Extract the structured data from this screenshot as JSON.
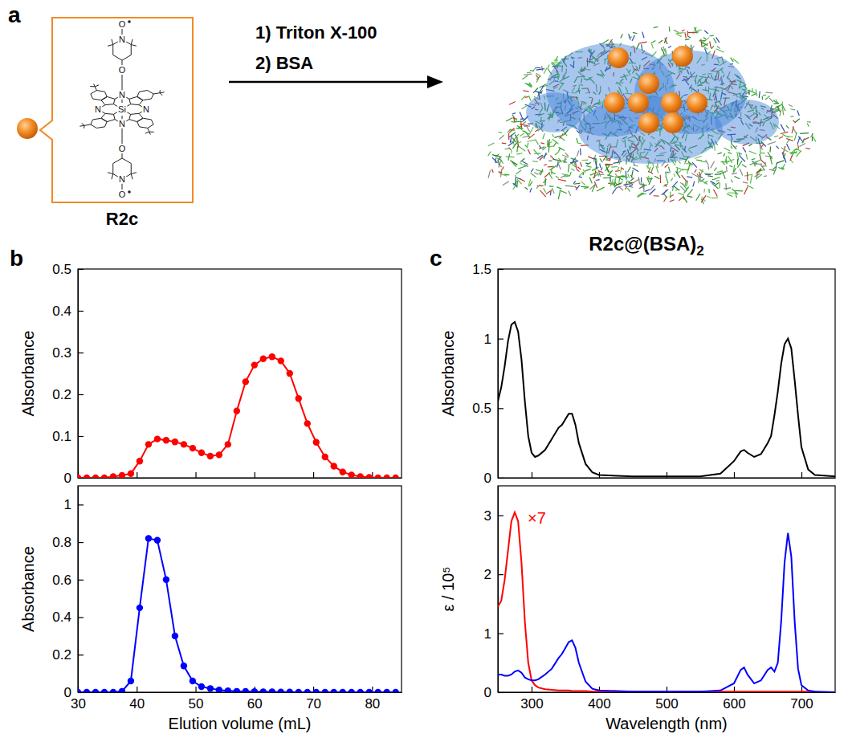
{
  "scheme": {
    "panel_label": "a",
    "compound": "R2c",
    "atom_labels": [
      "Si",
      "N",
      "O"
    ],
    "steps": [
      "1) Triton X-100",
      "2) BSA"
    ],
    "product": "R2c@(BSA)2"
  },
  "chart_data": [
    {
      "type": "line",
      "panel_label": "b",
      "x": [
        30,
        31.5,
        33,
        34.5,
        36,
        37.5,
        39,
        40.5,
        42,
        43.5,
        45,
        46.5,
        48,
        49.5,
        51,
        52.5,
        54,
        55.5,
        57,
        58.5,
        60,
        61.5,
        63,
        64.5,
        66,
        67.5,
        69,
        70.5,
        72,
        73.5,
        75,
        76.5,
        78,
        79.5,
        81,
        82.5,
        84
      ],
      "series": [
        {
          "color": "#ff0000",
          "marker": "circle",
          "values": [
            0,
            0,
            0,
            0,
            0.003,
            0.006,
            0.01,
            0.04,
            0.08,
            0.093,
            0.09,
            0.086,
            0.08,
            0.071,
            0.06,
            0.052,
            0.055,
            0.08,
            0.16,
            0.23,
            0.27,
            0.285,
            0.29,
            0.28,
            0.25,
            0.19,
            0.13,
            0.085,
            0.05,
            0.028,
            0.014,
            0.007,
            0.003,
            0.001,
            0,
            0,
            0
          ]
        }
      ],
      "xlim": [
        30,
        85
      ],
      "xticks": [
        30,
        40,
        50,
        60,
        70,
        80
      ],
      "ylim": [
        0,
        0.5
      ],
      "yticks": [
        0,
        0.1,
        0.2,
        0.3,
        0.4,
        0.5
      ],
      "y_label": "Absorbance",
      "tick_labels": "y"
    },
    {
      "type": "line",
      "x": [
        30,
        31.5,
        33,
        34.5,
        36,
        37.5,
        39,
        40.5,
        42,
        43.5,
        45,
        46.5,
        48,
        49.5,
        51,
        52.5,
        54,
        55.5,
        57,
        58.5,
        60,
        61.5,
        63,
        64.5,
        66,
        67.5,
        69,
        70.5,
        72,
        73.5,
        75,
        76.5,
        78,
        79.5,
        81,
        82.5,
        84
      ],
      "series": [
        {
          "color": "#0000ff",
          "marker": "circle",
          "values": [
            0,
            0,
            0,
            0,
            0,
            0.005,
            0.06,
            0.45,
            0.82,
            0.81,
            0.6,
            0.3,
            0.14,
            0.06,
            0.03,
            0.02,
            0.012,
            0.008,
            0.005,
            0.004,
            0.003,
            0.002,
            0.002,
            0.001,
            0.001,
            0,
            0,
            0,
            0,
            0,
            0,
            0,
            0,
            0,
            0,
            0,
            0
          ]
        }
      ],
      "xlim": [
        30,
        85
      ],
      "xticks": [
        30,
        40,
        50,
        60,
        70,
        80
      ],
      "ylim": [
        0,
        1.1
      ],
      "yticks": [
        0,
        0.2,
        0.4,
        0.6,
        0.8,
        1
      ],
      "x_label": "Elution volume (mL)",
      "y_label": "Absorbance"
    },
    {
      "type": "line",
      "panel_label": "c",
      "x": [
        250,
        255,
        260,
        265,
        270,
        275,
        280,
        285,
        290,
        295,
        300,
        305,
        310,
        320,
        330,
        340,
        345,
        350,
        355,
        360,
        365,
        370,
        380,
        390,
        400,
        450,
        500,
        550,
        580,
        600,
        610,
        615,
        620,
        630,
        640,
        650,
        655,
        660,
        665,
        670,
        675,
        680,
        685,
        690,
        695,
        700,
        710,
        720,
        750
      ],
      "series": [
        {
          "color": "#000000",
          "values": [
            0.55,
            0.65,
            0.8,
            0.98,
            1.1,
            1.12,
            1.05,
            0.85,
            0.55,
            0.3,
            0.18,
            0.15,
            0.16,
            0.2,
            0.28,
            0.36,
            0.38,
            0.42,
            0.46,
            0.46,
            0.38,
            0.25,
            0.1,
            0.04,
            0.02,
            0.01,
            0.01,
            0.01,
            0.03,
            0.12,
            0.19,
            0.2,
            0.18,
            0.15,
            0.17,
            0.25,
            0.3,
            0.45,
            0.62,
            0.82,
            0.96,
            1.0,
            0.93,
            0.7,
            0.45,
            0.22,
            0.06,
            0.02,
            0.01
          ]
        }
      ],
      "xlim": [
        250,
        750
      ],
      "xticks": [
        300,
        400,
        500,
        600,
        700
      ],
      "ylim": [
        0,
        1.5
      ],
      "yticks": [
        0,
        0.5,
        1,
        1.5
      ],
      "y_label": "Absorbance",
      "tick_labels": "y"
    },
    {
      "type": "line",
      "x": [
        250,
        255,
        260,
        265,
        270,
        275,
        280,
        285,
        290,
        295,
        300,
        305,
        310,
        320,
        330,
        340,
        345,
        350,
        355,
        360,
        365,
        370,
        380,
        390,
        400,
        450,
        500,
        550,
        580,
        600,
        610,
        615,
        620,
        630,
        640,
        650,
        655,
        660,
        665,
        670,
        675,
        680,
        685,
        690,
        695,
        700,
        710,
        720,
        750
      ],
      "series": [
        {
          "color": "#ff0000",
          "values": [
            1.45,
            1.55,
            1.9,
            2.4,
            2.9,
            3.05,
            2.9,
            2.2,
            1.2,
            0.5,
            0.2,
            0.12,
            0.08,
            0.05,
            0.04,
            0.03,
            0.03,
            0.03,
            0.03,
            0.02,
            0.02,
            0.02,
            0.02,
            0.01,
            0.01,
            0.01,
            0.01,
            0.01,
            0.01,
            0.01,
            0.01,
            0.01,
            0.01,
            0.01,
            0.01,
            0.01,
            0.01,
            0.01,
            0.01,
            0.01,
            0.01,
            0.01,
            0.01,
            0.01,
            0.01,
            0.01,
            0.01,
            0,
            0
          ]
        },
        {
          "color": "#0000ff",
          "values": [
            0.3,
            0.3,
            0.28,
            0.28,
            0.3,
            0.35,
            0.37,
            0.33,
            0.25,
            0.22,
            0.2,
            0.2,
            0.22,
            0.3,
            0.4,
            0.58,
            0.65,
            0.75,
            0.85,
            0.88,
            0.75,
            0.5,
            0.18,
            0.06,
            0.03,
            0.01,
            0.01,
            0.01,
            0.03,
            0.15,
            0.38,
            0.42,
            0.3,
            0.15,
            0.2,
            0.38,
            0.42,
            0.35,
            0.5,
            1.2,
            2.2,
            2.7,
            2.3,
            1.2,
            0.4,
            0.12,
            0.03,
            0.01,
            0
          ]
        }
      ],
      "xlim": [
        250,
        750
      ],
      "xticks": [
        300,
        400,
        500,
        600,
        700
      ],
      "ylim": [
        0,
        3.5
      ],
      "yticks": [
        0,
        1,
        2,
        3
      ],
      "x_label": "Wavelength (nm)",
      "y_label": "ε / 10⁵",
      "annotations": [
        "×7"
      ]
    }
  ]
}
